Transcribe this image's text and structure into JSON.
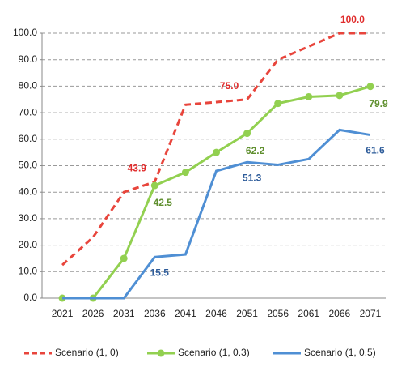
{
  "chart_data": {
    "type": "line",
    "categories": [
      "2021",
      "2026",
      "2031",
      "2036",
      "2041",
      "2046",
      "2051",
      "2056",
      "2061",
      "2066",
      "2071"
    ],
    "series": [
      {
        "name": "Scenario (1, 0)",
        "color": "#e8453c",
        "dash": true,
        "markers": false,
        "values": [
          12.5,
          23,
          40,
          43.9,
          73,
          74,
          75,
          90,
          95,
          100,
          100
        ],
        "value_labels": [
          null,
          null,
          null,
          "43.9",
          null,
          null,
          "75.0",
          null,
          null,
          null,
          "100.0"
        ]
      },
      {
        "name": "Scenario (1, 0.3)",
        "color": "#92d050",
        "dash": false,
        "markers": true,
        "values": [
          0,
          0,
          15,
          42.5,
          47.5,
          55,
          62.2,
          73.5,
          76,
          76.5,
          79.9
        ],
        "value_labels": [
          null,
          null,
          null,
          "42.5",
          null,
          null,
          "62.2",
          null,
          null,
          null,
          "79.9"
        ]
      },
      {
        "name": "Scenario (1, 0.5)",
        "color": "#4f8fd4",
        "dash": false,
        "markers": false,
        "values": [
          0,
          0,
          0,
          15.5,
          16.5,
          48,
          51.3,
          50.3,
          52.5,
          63.5,
          61.6
        ],
        "value_labels": [
          null,
          null,
          null,
          "15.5",
          null,
          null,
          "51.3",
          null,
          null,
          null,
          "61.6"
        ]
      }
    ],
    "ylim": [
      0,
      100
    ],
    "yticks": [
      {
        "value": 0,
        "label": "0.0"
      },
      {
        "value": 10,
        "label": "10.0"
      },
      {
        "value": 20,
        "label": "20.0"
      },
      {
        "value": 30,
        "label": "30.0"
      },
      {
        "value": 40,
        "label": "40.0"
      },
      {
        "value": 50,
        "label": "50.0"
      },
      {
        "value": 60,
        "label": "60.0"
      },
      {
        "value": 70,
        "label": "70.0"
      },
      {
        "value": 80,
        "label": "80.0"
      },
      {
        "value": 90,
        "label": "90.0"
      },
      {
        "value": 100,
        "label": "100.0"
      }
    ],
    "grid": true,
    "legend": "bottom"
  }
}
